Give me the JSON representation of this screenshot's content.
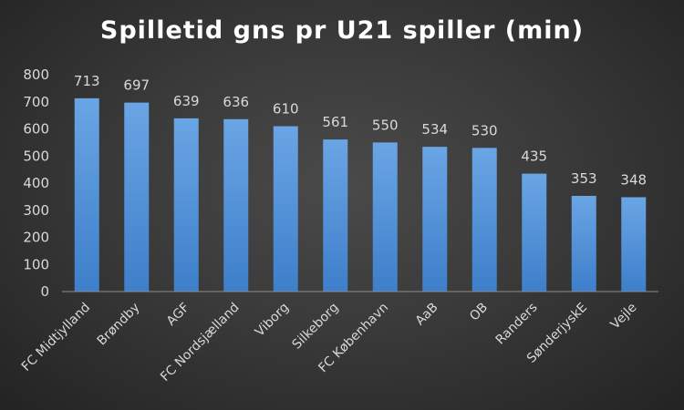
{
  "chart_data": {
    "type": "bar",
    "title": "Spilletid gns pr U21 spiller (min)",
    "xlabel": "",
    "ylabel": "",
    "categories": [
      "FC Midtjylland",
      "Brøndby",
      "AGF",
      "FC Nordsjælland",
      "Viborg",
      "Silkeborg",
      "FC København",
      "AaB",
      "OB",
      "Randers",
      "SønderjyskE",
      "Vejle"
    ],
    "values": [
      713,
      697,
      639,
      636,
      610,
      561,
      550,
      534,
      530,
      435,
      353,
      348
    ],
    "ylim": [
      0,
      800
    ],
    "yticks": [
      0,
      100,
      200,
      300,
      400,
      500,
      600,
      700,
      800
    ],
    "grid": false,
    "legend": "none",
    "data_labels": true,
    "bar_color_top": "#6aa5e4",
    "bar_color_bottom": "#3e7fcb",
    "background_color": "#3a3a3a",
    "text_color": "#d9d9d9"
  }
}
